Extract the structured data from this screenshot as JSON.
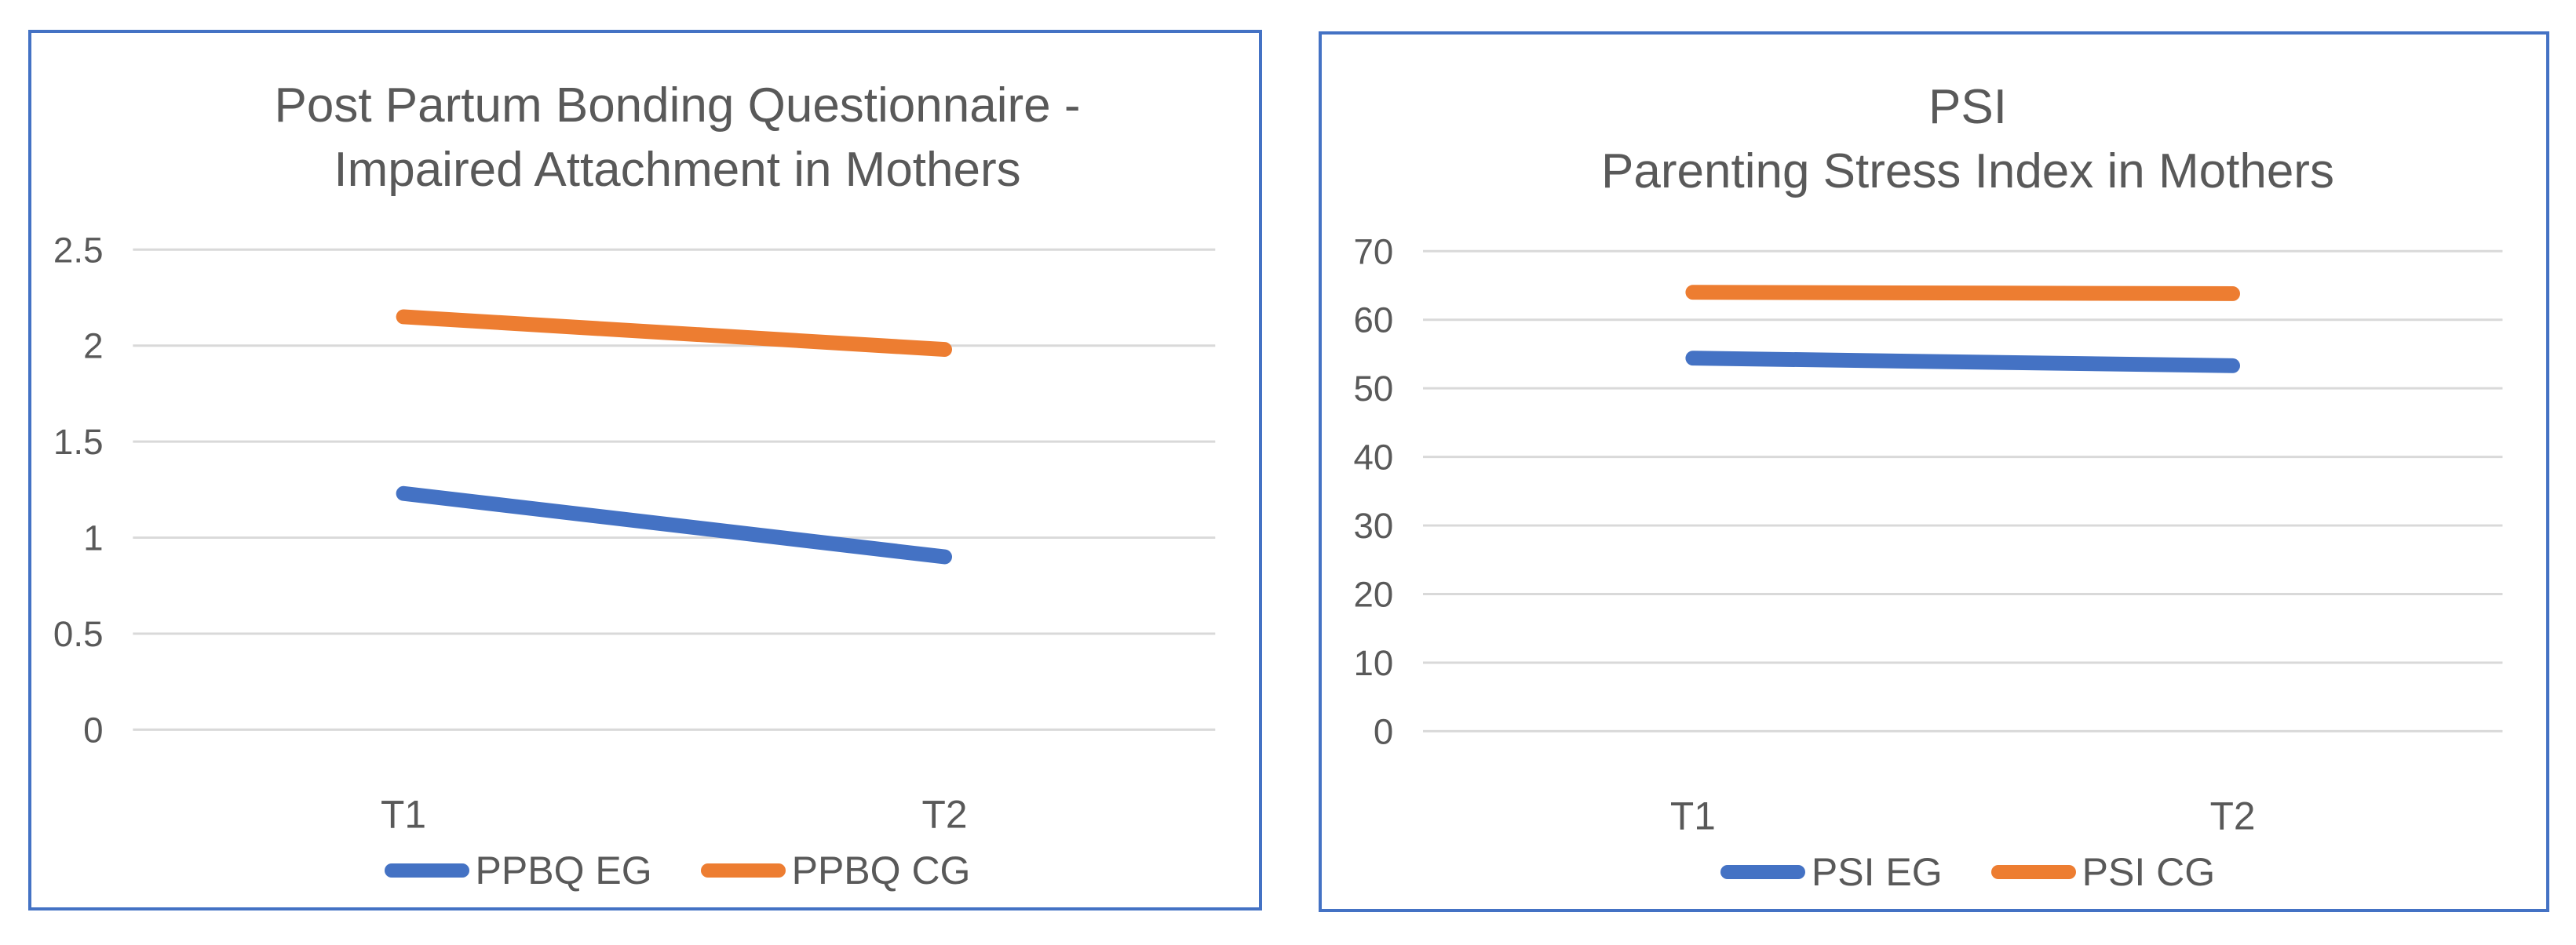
{
  "page": {
    "background_color": "#ffffff",
    "chart_border_color": "#4472C4",
    "gridline_color": "#D9D9D9",
    "text_color": "#595959"
  },
  "chart_data": [
    {
      "type": "line",
      "title_lines": [
        "Post Partum Bonding Questionnaire -",
        "Impaired Attachment in Mothers"
      ],
      "categories": [
        "T1",
        "T2"
      ],
      "series": [
        {
          "name": "PPBQ EG",
          "color": "#4472C4",
          "values": [
            1.23,
            0.9
          ]
        },
        {
          "name": "PPBQ CG",
          "color": "#ED7D31",
          "values": [
            2.15,
            1.98
          ]
        }
      ],
      "ylim": [
        0,
        2.5
      ],
      "y_ticks": {
        "values": [
          0,
          0.5,
          1,
          1.5,
          2,
          2.5
        ],
        "labels": [
          "0",
          "0.5",
          "1",
          "1.5",
          "2",
          "2.5"
        ]
      },
      "grid": true,
      "legend_position": "bottom"
    },
    {
      "type": "line",
      "title_lines": [
        "PSI",
        "Parenting Stress Index in Mothers"
      ],
      "categories": [
        "T1",
        "T2"
      ],
      "series": [
        {
          "name": "PSI EG",
          "color": "#4472C4",
          "values": [
            54.4,
            53.3
          ]
        },
        {
          "name": "PSI CG",
          "color": "#ED7D31",
          "values": [
            64,
            63.8
          ]
        }
      ],
      "ylim": [
        0,
        70
      ],
      "y_ticks": {
        "values": [
          0,
          10,
          20,
          30,
          40,
          50,
          60,
          70
        ],
        "labels": [
          "0",
          "10",
          "20",
          "30",
          "40",
          "50",
          "60",
          "70"
        ]
      },
      "grid": true,
      "legend_position": "bottom"
    }
  ]
}
